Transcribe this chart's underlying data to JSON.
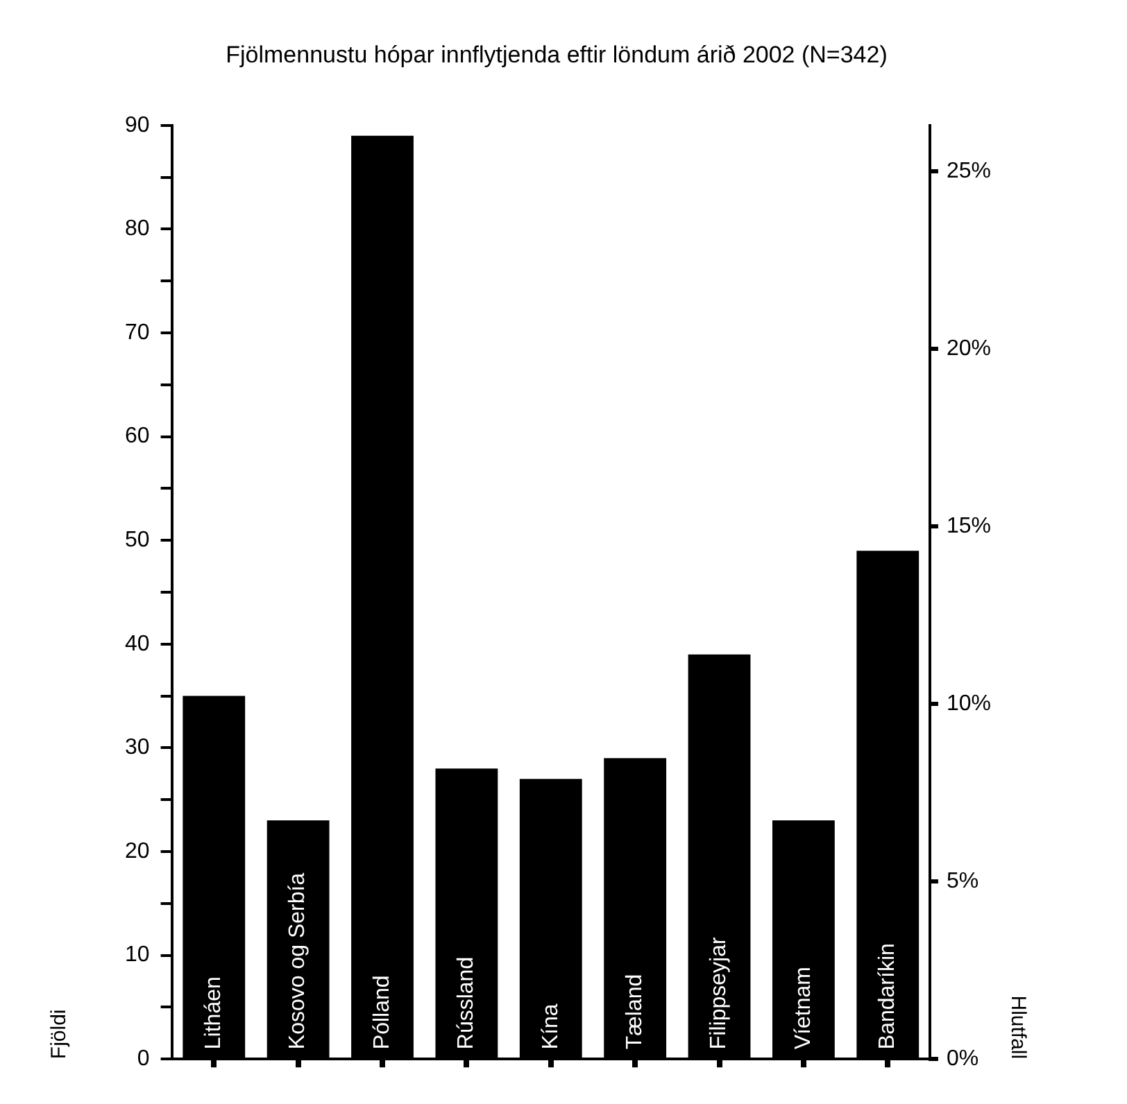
{
  "chart_data": {
    "type": "bar",
    "title": "Fjölmennustu hópar innflytjenda eftir löndum árið 2002 (N=342)",
    "ylabel": "Fjöldi",
    "y2label": "Hlutfall",
    "categories": [
      "Litháen",
      "Kosovo og Serbía",
      "Pólland",
      "Rússland",
      "Kína",
      "Tæland",
      "Filippseyjar",
      "Víetnam",
      "Bandaríkin"
    ],
    "values": [
      35,
      23,
      89,
      28,
      27,
      29,
      39,
      23,
      49
    ],
    "color": "#000000",
    "ylim": [
      0,
      90
    ],
    "yticks": [
      0,
      {
        "value": 5,
        "label": null
      },
      10,
      {
        "value": 15,
        "label": null
      },
      20,
      {
        "value": 25,
        "label": null
      },
      30,
      {
        "value": 35,
        "label": null
      },
      40,
      {
        "value": 45,
        "label": null
      },
      50,
      {
        "value": 55,
        "label": null
      },
      60,
      {
        "value": 65,
        "label": null
      },
      70,
      {
        "value": 75,
        "label": null
      },
      80,
      {
        "value": 85,
        "label": null
      },
      90
    ],
    "y2lim": [
      0,
      26.3
    ],
    "y2ticks": [
      {
        "value": 0,
        "label": "0%"
      },
      {
        "value": 5,
        "label": "5%"
      },
      {
        "value": 10,
        "label": "10%"
      },
      {
        "value": 15,
        "label": "15%"
      },
      {
        "value": 20,
        "label": "20%"
      },
      {
        "value": 25,
        "label": "25%"
      }
    ]
  }
}
